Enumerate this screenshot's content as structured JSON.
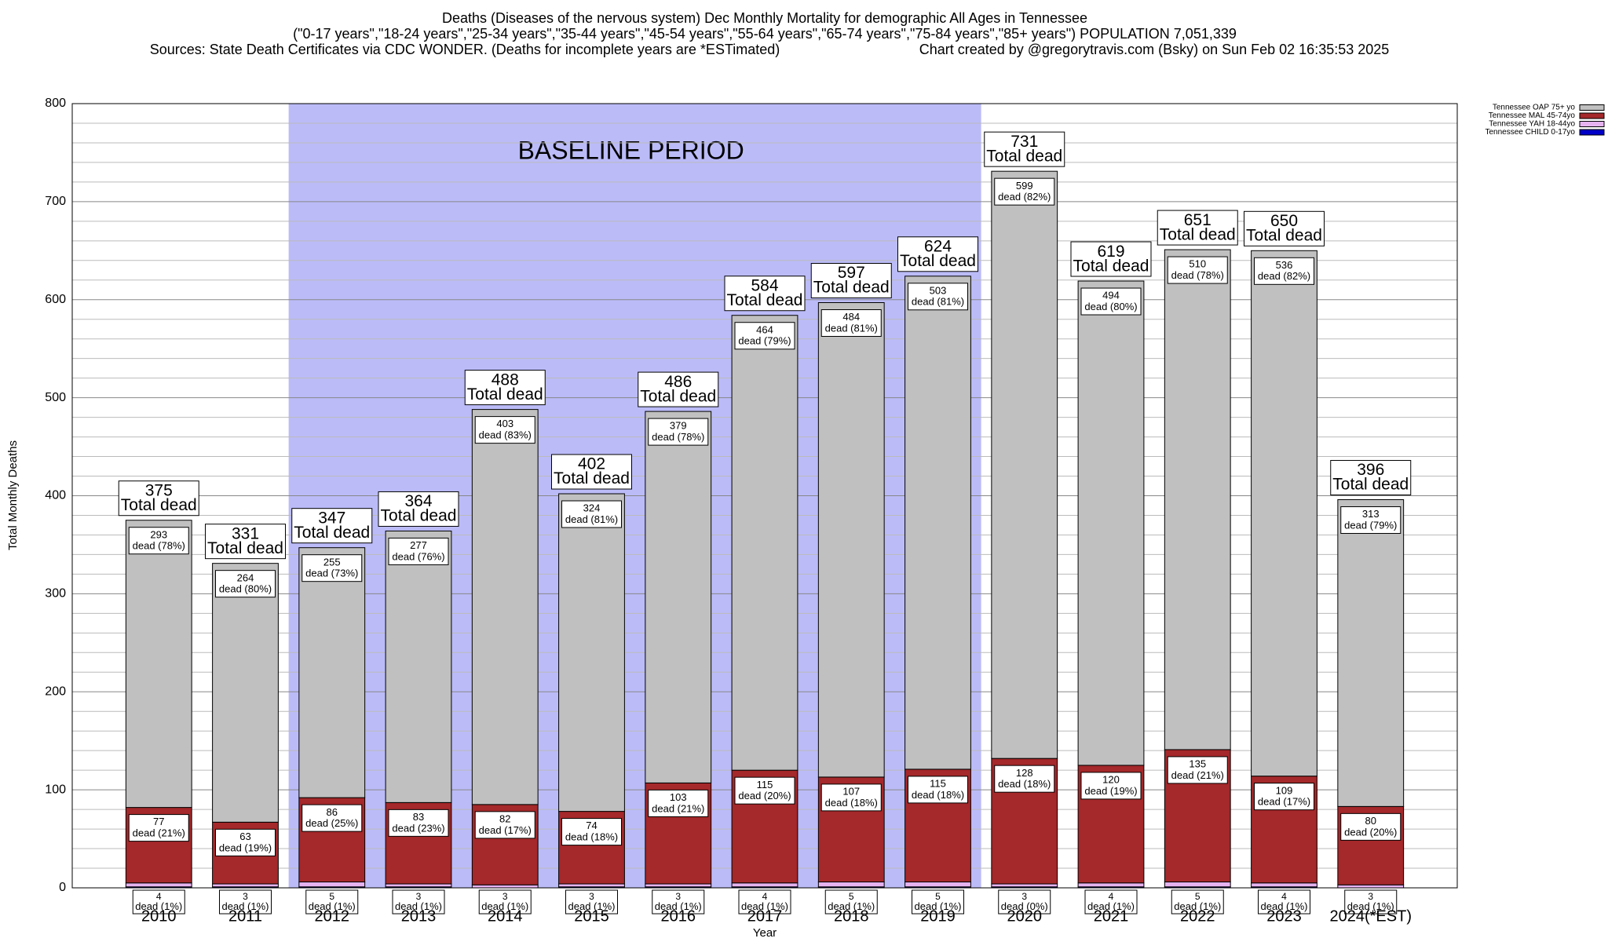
{
  "chart_data": {
    "type": "stacked_bar",
    "title": "Deaths (Diseases of the nervous system) Dec Monthly Mortality for demographic All Ages in Tennessee",
    "subtitle": "(\"0-17 years\",\"18-24 years\",\"25-34 years\",\"35-44 years\",\"45-54 years\",\"55-64 years\",\"65-74 years\",\"75-84 years\",\"85+ years\") POPULATION 7,051,339",
    "source": "Sources: State Death Certificates via CDC WONDER. (Deaths for incomplete years are *ESTimated)",
    "credit": "Chart created by @gregorytravis.com (Bsky) on Sun Feb 02 16:35:53 2025",
    "x_label": "Year",
    "y_label": "Total Monthly Deaths",
    "categories": [
      "2010",
      "2011",
      "2012",
      "2013",
      "2014",
      "2015",
      "2016",
      "2017",
      "2018",
      "2019",
      "2020",
      "2021",
      "2022",
      "2023",
      "2024(*EST)"
    ],
    "series": [
      {
        "name": "Tennessee OAP 75+ yo",
        "color": "#c0c0c0",
        "values": [
          293,
          264,
          255,
          277,
          403,
          324,
          379,
          464,
          484,
          503,
          599,
          494,
          510,
          536,
          313
        ],
        "share_labels": [
          "dead (78%)",
          "dead (80%)",
          "dead (73%)",
          "dead (76%)",
          "dead (83%)",
          "dead (81%)",
          "dead (78%)",
          "dead (79%)",
          "dead (81%)",
          "dead (81%)",
          "dead (82%)",
          "dead (80%)",
          "dead (78%)",
          "dead (82%)",
          "dead (79%)"
        ]
      },
      {
        "name": "Tennessee MAL 45-74yo",
        "color": "#a5282a",
        "values": [
          77,
          63,
          86,
          83,
          82,
          74,
          103,
          115,
          107,
          115,
          128,
          120,
          135,
          109,
          80
        ],
        "share_labels": [
          "dead (21%)",
          "dead (19%)",
          "dead (25%)",
          "dead (23%)",
          "dead (17%)",
          "dead (18%)",
          "dead (21%)",
          "dead (20%)",
          "dead (18%)",
          "dead (18%)",
          "dead (18%)",
          "dead (19%)",
          "dead (21%)",
          "dead (17%)",
          "dead (20%)"
        ]
      },
      {
        "name": "Tennessee YAH 18-44yo",
        "color": "#e6b3f0",
        "values": [
          4,
          3,
          5,
          3,
          3,
          3,
          3,
          4,
          5,
          5,
          3,
          4,
          5,
          4,
          3
        ],
        "share_labels": [
          "dead (1%)",
          "dead (1%)",
          "dead (1%)",
          "dead (1%)",
          "dead (1%)",
          "dead (1%)",
          "dead (1%)",
          "dead (1%)",
          "dead (1%)",
          "dead (1%)",
          "dead (0%)",
          "dead (1%)",
          "dead (1%)",
          "dead (1%)",
          "dead (1%)"
        ]
      },
      {
        "name": "Tennessee CHILD 0-17yo",
        "color": "#0000c8",
        "values": [
          1,
          1,
          1,
          1,
          0,
          1,
          1,
          1,
          1,
          1,
          1,
          1,
          1,
          1,
          0
        ]
      }
    ],
    "totals": [
      375,
      331,
      347,
      364,
      488,
      402,
      486,
      584,
      597,
      624,
      731,
      619,
      651,
      650,
      396
    ],
    "total_label": "Total dead",
    "baseline": {
      "label": "BASELINE PERIOD",
      "from": "2012",
      "to": "2019",
      "color": "#bbbbf8"
    },
    "ylim": [
      0,
      800
    ],
    "yticks": [
      0,
      100,
      200,
      300,
      400,
      500,
      600,
      700,
      800
    ],
    "minor_yticks": [
      20,
      40,
      60,
      80,
      120,
      140,
      160,
      180,
      220,
      240,
      260,
      280,
      320,
      340,
      360,
      380,
      420,
      440,
      460,
      480,
      520,
      540,
      560,
      580,
      620,
      640,
      660,
      680,
      720,
      740,
      760,
      780
    ],
    "grid": true,
    "legend": "top-right"
  }
}
